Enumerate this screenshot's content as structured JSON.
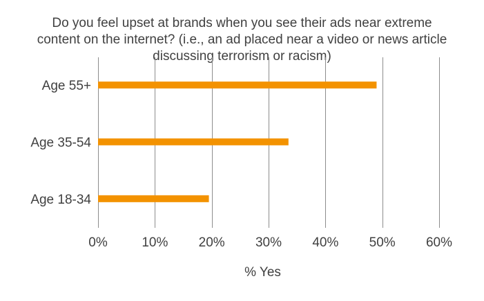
{
  "chart_data": {
    "type": "bar",
    "orientation": "horizontal",
    "title_lines": [
      "Do you feel upset at brands when you see their ads near extreme",
      "content on the internet? (i.e., an ad placed near a video or news article",
      "discussing terrorism or racism)"
    ],
    "categories": [
      "Age 55+",
      "Age 35-54",
      "Age 18-34"
    ],
    "values": [
      49,
      33.5,
      19.5
    ],
    "xlabel": "% Yes",
    "ylabel": "",
    "xlim": [
      0,
      60
    ],
    "x_ticks": [
      0,
      10,
      20,
      30,
      40,
      50,
      60
    ],
    "x_tick_labels": [
      "0%",
      "10%",
      "20%",
      "30%",
      "40%",
      "50%",
      "60%"
    ],
    "grid": "vertical",
    "legend": "none",
    "bar_color": "#F39200",
    "grid_color": "#8C8C8C"
  }
}
